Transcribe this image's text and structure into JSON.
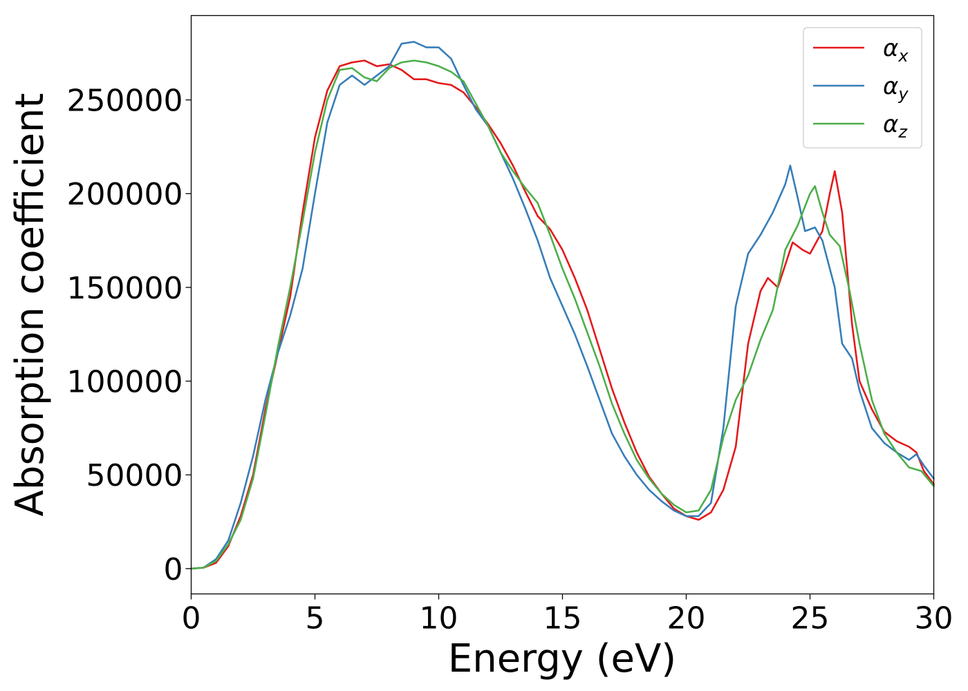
{
  "chart_data": {
    "type": "line",
    "title": "",
    "xlabel": "Energy (eV)",
    "ylabel": "Absorption coefficient",
    "xlim": [
      0,
      30
    ],
    "ylim": [
      -13500,
      295000
    ],
    "xticks": [
      0,
      5,
      10,
      15,
      20,
      25,
      30
    ],
    "yticks": [
      0,
      50000,
      100000,
      150000,
      200000,
      250000
    ],
    "grid": false,
    "legend_position": "top-right",
    "series": [
      {
        "name": "α",
        "subscript": "x",
        "color": "#e41a1c",
        "points": [
          [
            0,
            0
          ],
          [
            0.5,
            500
          ],
          [
            1.0,
            3000
          ],
          [
            1.5,
            12000
          ],
          [
            2.0,
            28000
          ],
          [
            2.5,
            50000
          ],
          [
            3.0,
            85000
          ],
          [
            3.5,
            115000
          ],
          [
            4.0,
            145000
          ],
          [
            4.5,
            190000
          ],
          [
            5.0,
            230000
          ],
          [
            5.5,
            255000
          ],
          [
            6.0,
            268000
          ],
          [
            6.5,
            270000
          ],
          [
            7.0,
            271000
          ],
          [
            7.5,
            268000
          ],
          [
            8.0,
            269000
          ],
          [
            8.5,
            266000
          ],
          [
            9.0,
            261000
          ],
          [
            9.5,
            261000
          ],
          [
            10.0,
            259000
          ],
          [
            10.5,
            258000
          ],
          [
            11.0,
            254000
          ],
          [
            11.5,
            246000
          ],
          [
            12.0,
            237000
          ],
          [
            12.5,
            227000
          ],
          [
            13.0,
            215000
          ],
          [
            13.5,
            201000
          ],
          [
            14.0,
            188000
          ],
          [
            14.5,
            181000
          ],
          [
            15.0,
            170000
          ],
          [
            15.5,
            155000
          ],
          [
            16.0,
            138000
          ],
          [
            16.5,
            117000
          ],
          [
            17.0,
            96000
          ],
          [
            17.5,
            78000
          ],
          [
            18.0,
            62000
          ],
          [
            18.5,
            49000
          ],
          [
            19.0,
            40000
          ],
          [
            19.5,
            32000
          ],
          [
            20.0,
            28000
          ],
          [
            20.5,
            26000
          ],
          [
            21.0,
            30000
          ],
          [
            21.5,
            42000
          ],
          [
            22.0,
            65000
          ],
          [
            22.5,
            120000
          ],
          [
            23.0,
            148000
          ],
          [
            23.3,
            155000
          ],
          [
            23.7,
            150000
          ],
          [
            24.0,
            162000
          ],
          [
            24.3,
            174000
          ],
          [
            24.7,
            170000
          ],
          [
            25.0,
            168000
          ],
          [
            25.5,
            180000
          ],
          [
            25.8,
            200000
          ],
          [
            26.0,
            212000
          ],
          [
            26.3,
            190000
          ],
          [
            26.7,
            130000
          ],
          [
            27.0,
            100000
          ],
          [
            27.5,
            85000
          ],
          [
            28.0,
            73000
          ],
          [
            28.5,
            68000
          ],
          [
            29.0,
            65000
          ],
          [
            29.3,
            62000
          ],
          [
            29.6,
            52000
          ],
          [
            30.0,
            45000
          ]
        ]
      },
      {
        "name": "α",
        "subscript": "y",
        "color": "#377eb8",
        "points": [
          [
            0,
            0
          ],
          [
            0.5,
            500
          ],
          [
            1.0,
            5000
          ],
          [
            1.5,
            15000
          ],
          [
            2.0,
            35000
          ],
          [
            2.5,
            60000
          ],
          [
            3.0,
            90000
          ],
          [
            3.5,
            115000
          ],
          [
            4.0,
            135000
          ],
          [
            4.5,
            160000
          ],
          [
            5.0,
            200000
          ],
          [
            5.5,
            238000
          ],
          [
            6.0,
            258000
          ],
          [
            6.5,
            263000
          ],
          [
            7.0,
            258000
          ],
          [
            7.5,
            263000
          ],
          [
            8.0,
            268000
          ],
          [
            8.5,
            280000
          ],
          [
            9.0,
            281000
          ],
          [
            9.5,
            278000
          ],
          [
            10.0,
            278000
          ],
          [
            10.5,
            272000
          ],
          [
            11.0,
            258000
          ],
          [
            11.5,
            245000
          ],
          [
            12.0,
            236000
          ],
          [
            12.5,
            222000
          ],
          [
            13.0,
            208000
          ],
          [
            13.5,
            192000
          ],
          [
            14.0,
            175000
          ],
          [
            14.5,
            155000
          ],
          [
            15.0,
            140000
          ],
          [
            15.5,
            125000
          ],
          [
            16.0,
            108000
          ],
          [
            16.5,
            90000
          ],
          [
            17.0,
            72000
          ],
          [
            17.5,
            60000
          ],
          [
            18.0,
            50000
          ],
          [
            18.5,
            42000
          ],
          [
            19.0,
            36000
          ],
          [
            19.5,
            31000
          ],
          [
            20.0,
            28000
          ],
          [
            20.5,
            28000
          ],
          [
            21.0,
            35000
          ],
          [
            21.5,
            75000
          ],
          [
            22.0,
            140000
          ],
          [
            22.5,
            168000
          ],
          [
            23.0,
            178000
          ],
          [
            23.5,
            190000
          ],
          [
            24.0,
            205000
          ],
          [
            24.2,
            215000
          ],
          [
            24.5,
            198000
          ],
          [
            24.8,
            180000
          ],
          [
            25.2,
            182000
          ],
          [
            25.5,
            175000
          ],
          [
            26.0,
            150000
          ],
          [
            26.3,
            120000
          ],
          [
            26.7,
            112000
          ],
          [
            27.0,
            95000
          ],
          [
            27.5,
            75000
          ],
          [
            28.0,
            67000
          ],
          [
            28.5,
            62000
          ],
          [
            29.0,
            58000
          ],
          [
            29.3,
            61000
          ],
          [
            29.6,
            55000
          ],
          [
            30.0,
            48000
          ]
        ]
      },
      {
        "name": "α",
        "subscript": "z",
        "color": "#4daf4a",
        "points": [
          [
            0,
            0
          ],
          [
            0.5,
            500
          ],
          [
            1.0,
            4000
          ],
          [
            1.5,
            13000
          ],
          [
            2.0,
            26000
          ],
          [
            2.5,
            48000
          ],
          [
            3.0,
            82000
          ],
          [
            3.5,
            118000
          ],
          [
            4.0,
            150000
          ],
          [
            4.5,
            185000
          ],
          [
            5.0,
            222000
          ],
          [
            5.5,
            250000
          ],
          [
            6.0,
            266000
          ],
          [
            6.5,
            267000
          ],
          [
            7.0,
            262000
          ],
          [
            7.5,
            260000
          ],
          [
            8.0,
            267000
          ],
          [
            8.5,
            270000
          ],
          [
            9.0,
            271000
          ],
          [
            9.5,
            270000
          ],
          [
            10.0,
            268000
          ],
          [
            10.5,
            265000
          ],
          [
            11.0,
            260000
          ],
          [
            11.5,
            248000
          ],
          [
            12.0,
            236000
          ],
          [
            12.5,
            222000
          ],
          [
            13.0,
            212000
          ],
          [
            13.5,
            203000
          ],
          [
            14.0,
            195000
          ],
          [
            14.5,
            178000
          ],
          [
            15.0,
            160000
          ],
          [
            15.5,
            144000
          ],
          [
            16.0,
            126000
          ],
          [
            16.5,
            108000
          ],
          [
            17.0,
            88000
          ],
          [
            17.5,
            72000
          ],
          [
            18.0,
            58000
          ],
          [
            18.5,
            48000
          ],
          [
            19.0,
            40000
          ],
          [
            19.5,
            34000
          ],
          [
            20.0,
            30000
          ],
          [
            20.5,
            31000
          ],
          [
            21.0,
            42000
          ],
          [
            21.5,
            70000
          ],
          [
            22.0,
            90000
          ],
          [
            22.5,
            103000
          ],
          [
            23.0,
            122000
          ],
          [
            23.5,
            138000
          ],
          [
            24.0,
            170000
          ],
          [
            24.5,
            183000
          ],
          [
            25.0,
            200000
          ],
          [
            25.2,
            204000
          ],
          [
            25.5,
            190000
          ],
          [
            25.8,
            178000
          ],
          [
            26.2,
            172000
          ],
          [
            26.6,
            148000
          ],
          [
            27.0,
            120000
          ],
          [
            27.5,
            90000
          ],
          [
            28.0,
            72000
          ],
          [
            28.5,
            62000
          ],
          [
            29.0,
            54000
          ],
          [
            29.5,
            52000
          ],
          [
            30.0,
            44000
          ]
        ]
      }
    ]
  }
}
